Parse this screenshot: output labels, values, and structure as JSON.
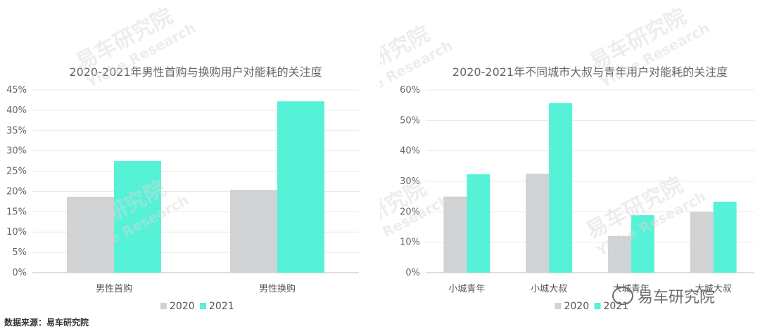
{
  "source_note": "数据来源：易车研究院",
  "watermark": {
    "brand": "易车研究院",
    "brand_en": "Yiche Research"
  },
  "colors": {
    "series_2020": "#d0d2d4",
    "series_2021": "#55f2d8"
  },
  "chart_data": [
    {
      "type": "bar",
      "title": "2020-2021年男性首购与换购用户对能耗的关注度",
      "categories": [
        "男性首购",
        "男性换购"
      ],
      "series": [
        {
          "name": "2020",
          "values": [
            18.7,
            20.4
          ]
        },
        {
          "name": "2021",
          "values": [
            27.5,
            42.2
          ]
        }
      ],
      "ylim": [
        0,
        45
      ],
      "yticks": [
        "0%",
        "5%",
        "10%",
        "15%",
        "20%",
        "25%",
        "30%",
        "35%",
        "40%",
        "45%"
      ],
      "ytick_values": [
        0,
        5,
        10,
        15,
        20,
        25,
        30,
        35,
        40,
        45
      ],
      "legend": "bottom-center",
      "grid": true
    },
    {
      "type": "bar",
      "title": "2020-2021年不同城市大叔与青年用户对能耗的关注度",
      "categories": [
        "小城青年",
        "小城大叔",
        "大城青年",
        "大城大叔"
      ],
      "series": [
        {
          "name": "2020",
          "values": [
            25.0,
            32.5,
            12.0,
            20.0
          ]
        },
        {
          "name": "2021",
          "values": [
            32.3,
            55.7,
            18.9,
            23.3
          ]
        }
      ],
      "ylim": [
        0,
        60
      ],
      "yticks": [
        "0%",
        "10%",
        "20%",
        "30%",
        "40%",
        "50%",
        "60%"
      ],
      "ytick_values": [
        0,
        10,
        20,
        30,
        40,
        50,
        60
      ],
      "legend": "bottom-center",
      "grid": true
    }
  ]
}
